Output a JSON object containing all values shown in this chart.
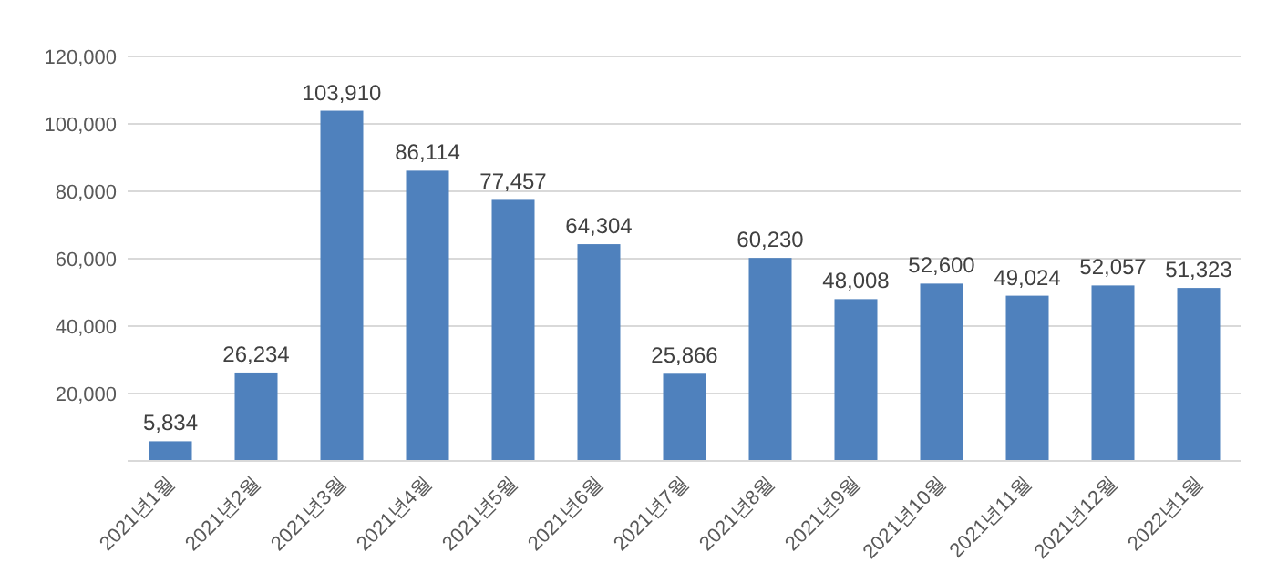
{
  "chart_data": {
    "type": "bar",
    "categories": [
      "2021년1월",
      "2021년2월",
      "2021년3월",
      "2021년4월",
      "2021년5월",
      "2021년6월",
      "2021년7월",
      "2021년8월",
      "2021년9월",
      "2021년10월",
      "2021년11월",
      "2021년12월",
      "2022년1월"
    ],
    "values": [
      5834,
      26234,
      103910,
      86114,
      77457,
      64304,
      25866,
      60230,
      48008,
      52600,
      49024,
      52057,
      51323
    ],
    "value_labels": [
      "5,834",
      "26,234",
      "103,910",
      "86,114",
      "77,457",
      "64,304",
      "25,866",
      "60,230",
      "48,008",
      "52,600",
      "49,024",
      "52,057",
      "51,323"
    ],
    "color": "#4f81bd",
    "ylim": [
      0,
      120000
    ],
    "yticks": [
      {
        "value": 20000,
        "label": "20,000"
      },
      {
        "value": 40000,
        "label": "40,000"
      },
      {
        "value": 60000,
        "label": "60,000"
      },
      {
        "value": 80000,
        "label": "80,000"
      },
      {
        "value": 100000,
        "label": "100,000"
      },
      {
        "value": 120000,
        "label": "120,000"
      }
    ],
    "grid": "y"
  }
}
